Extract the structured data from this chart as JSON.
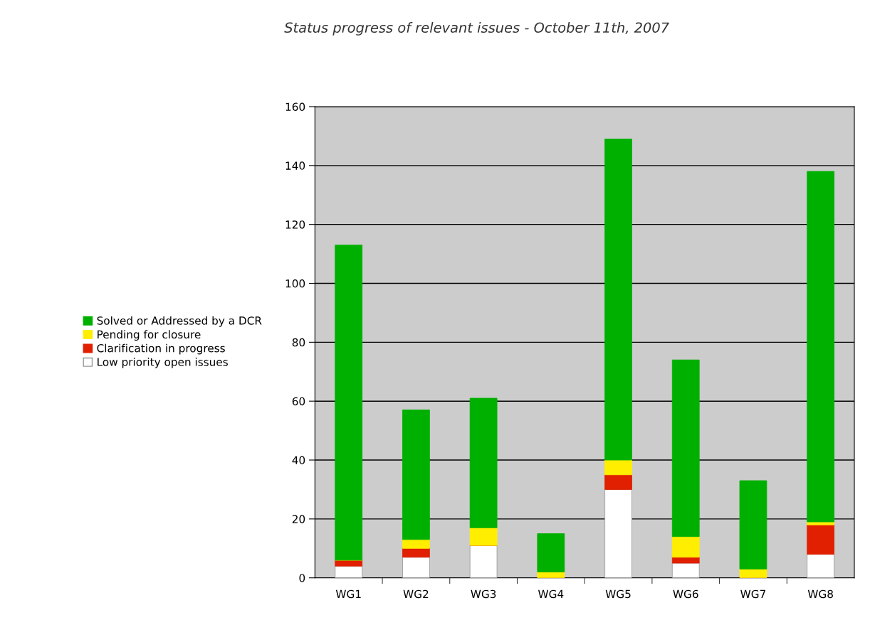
{
  "chart_data": {
    "type": "bar",
    "title": "Status progress of relevant issues - October 11th, 2007",
    "categories": [
      "WG1",
      "WG2",
      "WG3",
      "WG4",
      "WG5",
      "WG6",
      "WG7",
      "WG8"
    ],
    "stacked": true,
    "series": [
      {
        "name": "Low priority open issues",
        "color": "#ffffff",
        "values": [
          4,
          7,
          11,
          0,
          30,
          5,
          0,
          8
        ]
      },
      {
        "name": "Clarification in progress",
        "color": "#e02000",
        "values": [
          2,
          3,
          0,
          0,
          5,
          2,
          0,
          10
        ]
      },
      {
        "name": "Pending for closure",
        "color": "#ffee00",
        "values": [
          0,
          3,
          6,
          2,
          5,
          7,
          3,
          1
        ]
      },
      {
        "name": "Solved or Addressed by a DCR",
        "color": "#00b000",
        "values": [
          107,
          44,
          44,
          13,
          109,
          60,
          30,
          119
        ]
      }
    ],
    "ylim": [
      0,
      160
    ],
    "yticks": [
      0,
      20,
      40,
      60,
      80,
      100,
      120,
      140,
      160
    ],
    "grid": "y",
    "legend": "left"
  }
}
